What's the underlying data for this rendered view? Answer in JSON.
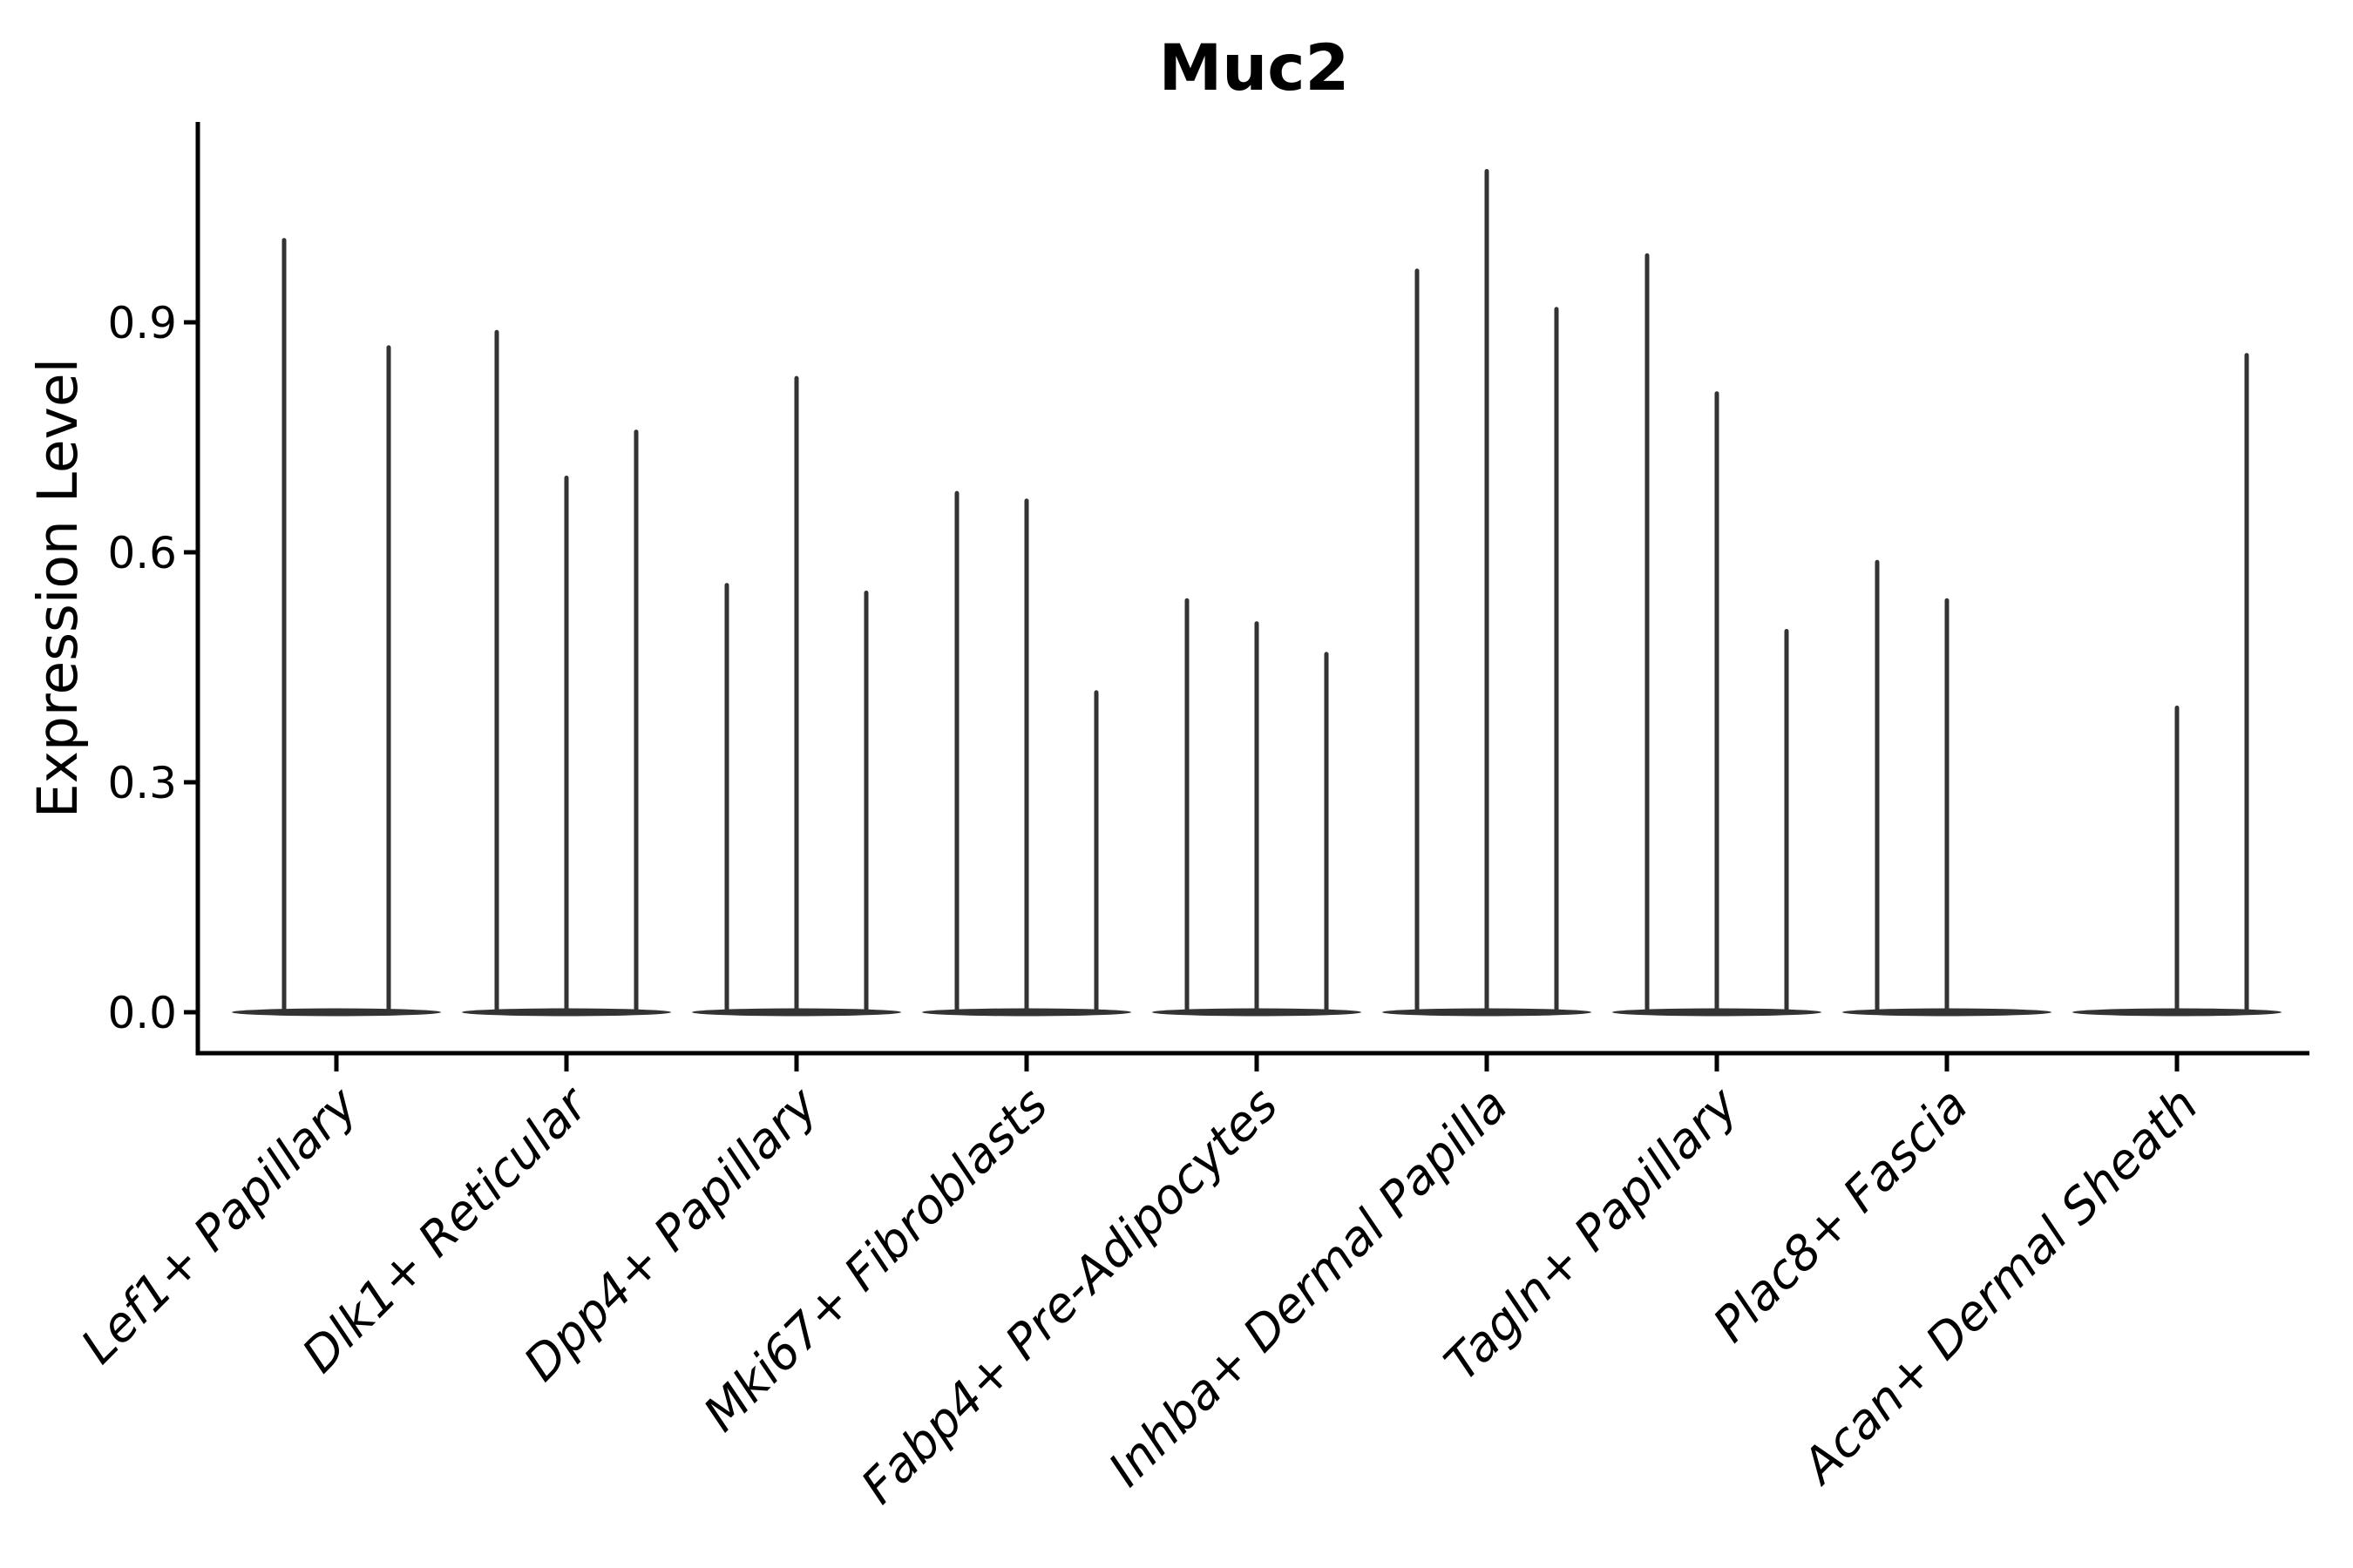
{
  "chart_data": {
    "type": "violin",
    "title": "Muc2",
    "ylabel": "Expression Level",
    "xlabel": "",
    "y_ticks": [
      "0.0",
      "0.3",
      "0.6",
      "0.9"
    ],
    "y_tick_values": [
      0.0,
      0.3,
      0.6,
      0.9
    ],
    "ylim": [
      -0.05,
      1.16
    ],
    "grid": false,
    "legend": "none",
    "note": "Sparse expression: each violin collapses to a flat lens at 0 with a thin spike to its maximum expression value",
    "categories": [
      {
        "label": "Lef1+ Papillary",
        "violins": [
          {
            "offset": -60,
            "max": 1.01
          },
          {
            "offset": 60,
            "max": 0.87
          }
        ]
      },
      {
        "label": "Dlk1+ Reticular",
        "violins": [
          {
            "offset": -80,
            "max": 0.89
          },
          {
            "offset": 0,
            "max": 0.7
          },
          {
            "offset": 80,
            "max": 0.76
          }
        ]
      },
      {
        "label": "Dpp4+ Papillary",
        "violins": [
          {
            "offset": -80,
            "max": 0.56
          },
          {
            "offset": 0,
            "max": 0.83
          },
          {
            "offset": 80,
            "max": 0.55
          }
        ]
      },
      {
        "label": "Mki67+ Fibroblasts",
        "violins": [
          {
            "offset": -80,
            "max": 0.68
          },
          {
            "offset": 0,
            "max": 0.67
          },
          {
            "offset": 80,
            "max": 0.42
          }
        ]
      },
      {
        "label": "Fabp4+ Pre-Adipocytes",
        "violins": [
          {
            "offset": -80,
            "max": 0.54
          },
          {
            "offset": 0,
            "max": 0.51
          },
          {
            "offset": 80,
            "max": 0.47
          }
        ]
      },
      {
        "label": "Inhba+ Dermal Papilla",
        "violins": [
          {
            "offset": -80,
            "max": 0.97
          },
          {
            "offset": 0,
            "max": 1.1
          },
          {
            "offset": 80,
            "max": 0.92
          }
        ]
      },
      {
        "label": "Tagln+ Papillary",
        "violins": [
          {
            "offset": -80,
            "max": 0.99
          },
          {
            "offset": 0,
            "max": 0.81
          },
          {
            "offset": 80,
            "max": 0.5
          }
        ]
      },
      {
        "label": "Plac8+ Fascia",
        "violins": [
          {
            "offset": -80,
            "max": 0.59
          },
          {
            "offset": 0,
            "max": 0.54
          }
        ]
      },
      {
        "label": "Acan+ Dermal Sheath",
        "violins": [
          {
            "offset": 0,
            "max": 0.4
          },
          {
            "offset": 80,
            "max": 0.86
          }
        ]
      }
    ],
    "colors": {
      "violin": "#333333",
      "spine": "#000000",
      "text": "#000000",
      "background": "#ffffff"
    }
  }
}
